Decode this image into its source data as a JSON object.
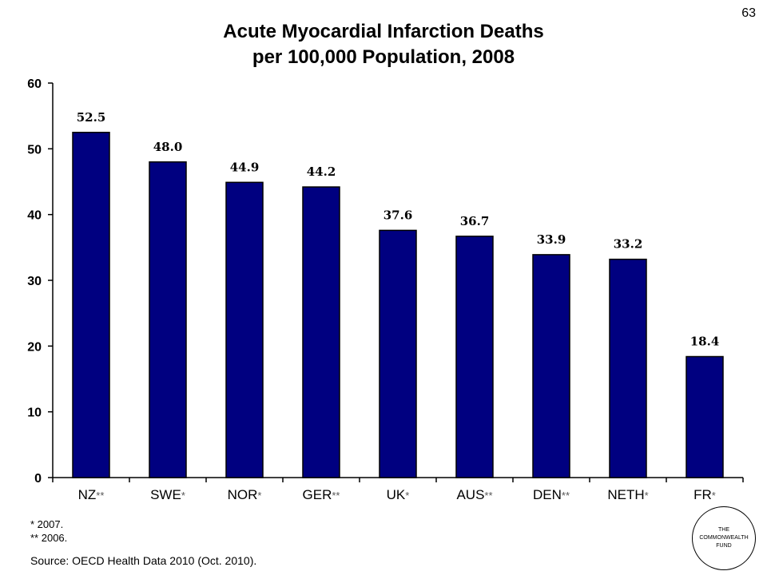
{
  "slide_number": "63",
  "title_lines": [
    "Acute Myocardial Infarction Deaths",
    "per 100,000 Population, 2008"
  ],
  "footnotes": [
    "* 2007.",
    "** 2006."
  ],
  "source": "Source: OECD Health Data 2010 (Oct. 2010).",
  "logo_lines": [
    "THE",
    "COMMONWEALTH",
    "FUND"
  ],
  "colors": {
    "bar": "#000080",
    "axis": "#000000"
  },
  "chart_data": {
    "type": "bar",
    "title": "Acute Myocardial Infarction Deaths per 100,000 Population, 2008",
    "categories": [
      "NZ",
      "SWE",
      "NOR",
      "GER",
      "UK",
      "AUS",
      "DEN",
      "NETH",
      "FR"
    ],
    "category_marks": [
      "**",
      "*",
      "*",
      "**",
      "*",
      "**",
      "**",
      "*",
      "*"
    ],
    "values": [
      52.5,
      48.0,
      44.9,
      44.2,
      37.6,
      36.7,
      33.9,
      33.2,
      18.4
    ],
    "data_labels": [
      "52.5",
      "48.0",
      "44.9",
      "44.2",
      "37.6",
      "36.7",
      "33.9",
      "33.2",
      "18.4"
    ],
    "yticks": [
      0,
      10,
      20,
      30,
      40,
      50,
      60
    ],
    "ylim": [
      0,
      60
    ],
    "xlabel": "",
    "ylabel": "",
    "grid": false,
    "legend": "none"
  }
}
